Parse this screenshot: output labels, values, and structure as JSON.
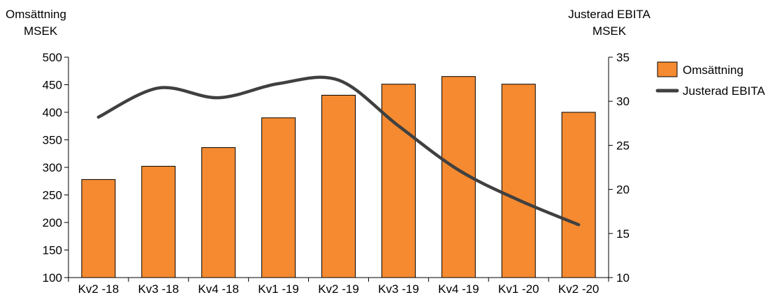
{
  "chart_data": {
    "type": "bar",
    "categories": [
      "Kv2 -18",
      "Kv3 -18",
      "Kv4 -18",
      "Kv1 -19",
      "Kv2 -19",
      "Kv3 -19",
      "Kv4 -19",
      "Kv1 -20",
      "Kv2 -20"
    ],
    "series": [
      {
        "name": "Omsättning",
        "type": "bar",
        "axis": "left",
        "color": "#F58A30",
        "values": [
          278,
          302,
          336,
          390,
          431,
          451,
          465,
          451,
          400
        ]
      },
      {
        "name": "Justerad EBITA",
        "type": "line",
        "smooth": true,
        "axis": "right",
        "color": "#404040",
        "values": [
          28.2,
          31.5,
          30.4,
          32.0,
          32.4,
          27.2,
          22.2,
          18.8,
          16.0
        ]
      }
    ],
    "y_left": {
      "title_lines": [
        "Omsättning",
        "MSEK"
      ],
      "ylim": [
        100,
        500
      ],
      "ticks": [
        100,
        150,
        200,
        250,
        300,
        350,
        400,
        450,
        500
      ]
    },
    "y_right": {
      "title_lines": [
        "Justerad EBITA",
        "MSEK"
      ],
      "ylim": [
        10,
        35
      ],
      "ticks": [
        10,
        15,
        20,
        25,
        30,
        35
      ]
    },
    "grid": false,
    "legend": {
      "position": "right",
      "entries": [
        "Omsättning",
        "Justerad EBITA"
      ]
    }
  }
}
